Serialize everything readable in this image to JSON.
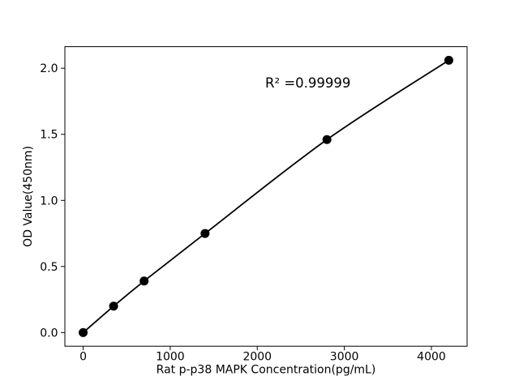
{
  "chart_data": {
    "type": "line",
    "title": "",
    "xlabel": "Rat p-p38 MAPK Concentration(pg/mL)",
    "ylabel": "OD Value(450nm)",
    "x": [
      0,
      350,
      700,
      1400,
      2800,
      4200
    ],
    "y": [
      0.0,
      0.2,
      0.39,
      0.75,
      1.46,
      2.06
    ],
    "xtick_labels": [
      "0",
      "1000",
      "2000",
      "3000",
      "4000"
    ],
    "xtick_values": [
      0,
      1000,
      2000,
      3000,
      4000
    ],
    "ytick_labels": [
      "0.0",
      "0.5",
      "1.0",
      "1.5",
      "2.0"
    ],
    "ytick_values": [
      0,
      0.5,
      1.0,
      1.5,
      2.0
    ],
    "xlim": [
      -210,
      4410
    ],
    "ylim": [
      -0.103,
      2.163
    ],
    "annotation": "R² =0.99999",
    "line_color": "#000000",
    "marker_color": "#000000",
    "axis_color": "#000000",
    "background": "#ffffff",
    "grid": false,
    "legend": null
  }
}
